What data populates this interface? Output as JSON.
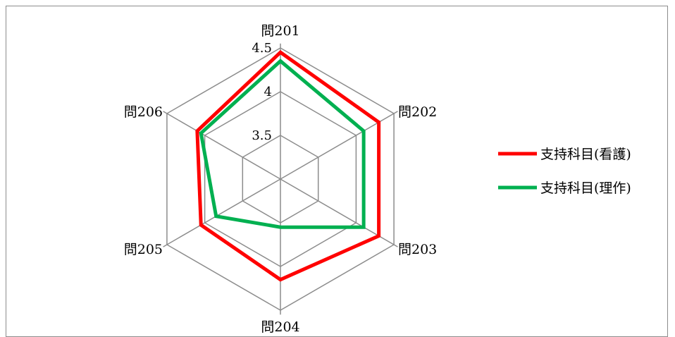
{
  "chart_data": {
    "type": "radar",
    "categories": [
      "問201",
      "問202",
      "問203",
      "問204",
      "問205",
      "問206"
    ],
    "series": [
      {
        "name": "支持科目(看護)",
        "color": "#ff0000",
        "values": [
          4.45,
          4.3,
          4.3,
          4.15,
          4.05,
          4.1
        ]
      },
      {
        "name": "支持科目(理作)",
        "color": "#00b050",
        "values": [
          4.35,
          4.1,
          4.1,
          3.55,
          3.85,
          4.05
        ]
      }
    ],
    "rlim": [
      3.0,
      4.5
    ],
    "ticks": [
      3.5,
      4,
      4.5
    ],
    "tick_labels": [
      "3.5",
      "4",
      "4.5"
    ],
    "grid": true,
    "legend_position": "right"
  }
}
